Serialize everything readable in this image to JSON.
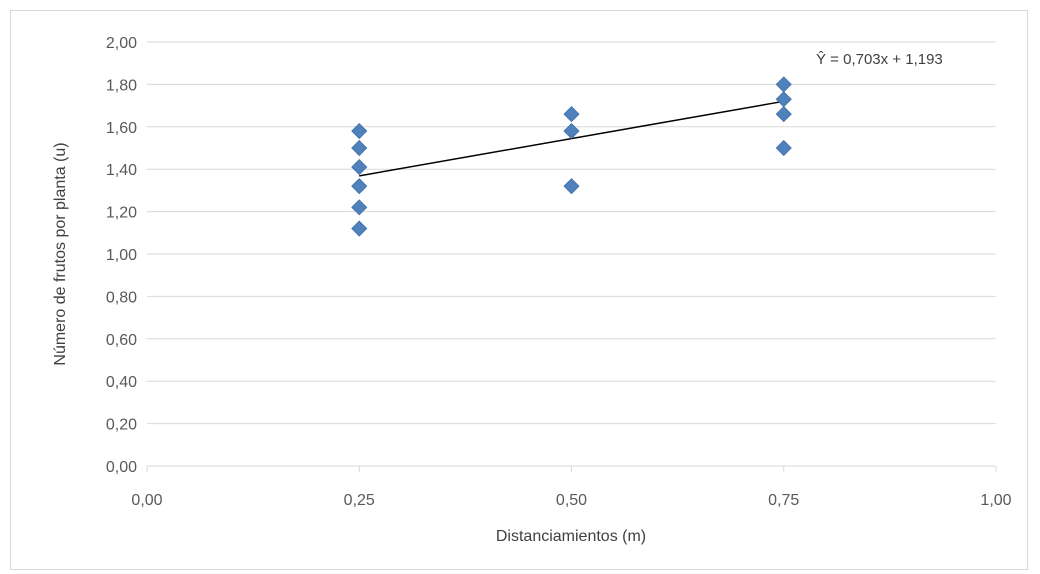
{
  "chart_data": {
    "type": "scatter",
    "xlabel": "Distanciamientos (m)",
    "ylabel": "Número de frutos por planta (u)",
    "xlim": [
      0,
      1
    ],
    "ylim": [
      0,
      2
    ],
    "x_ticks": [
      "0,00",
      "0,25",
      "0,50",
      "0,75",
      "1,00"
    ],
    "y_ticks": [
      "0,00",
      "0,20",
      "0,40",
      "0,60",
      "0,80",
      "1,00",
      "1,20",
      "1,40",
      "1,60",
      "1,80",
      "2,00"
    ],
    "grid": "horizontal",
    "marker_color": "#4f81bd",
    "line_color": "#000000",
    "points": [
      {
        "x": 0.25,
        "y": 1.58
      },
      {
        "x": 0.25,
        "y": 1.5
      },
      {
        "x": 0.25,
        "y": 1.41
      },
      {
        "x": 0.25,
        "y": 1.32
      },
      {
        "x": 0.25,
        "y": 1.22
      },
      {
        "x": 0.25,
        "y": 1.12
      },
      {
        "x": 0.5,
        "y": 1.66
      },
      {
        "x": 0.5,
        "y": 1.58
      },
      {
        "x": 0.5,
        "y": 1.32
      },
      {
        "x": 0.75,
        "y": 1.8
      },
      {
        "x": 0.75,
        "y": 1.73
      },
      {
        "x": 0.75,
        "y": 1.66
      },
      {
        "x": 0.75,
        "y": 1.5
      }
    ],
    "trendline": {
      "slope": 0.703,
      "intercept": 1.193,
      "x_range": [
        0.25,
        0.75
      ],
      "equation": "Ŷ = 0,703x + 1,193"
    }
  }
}
